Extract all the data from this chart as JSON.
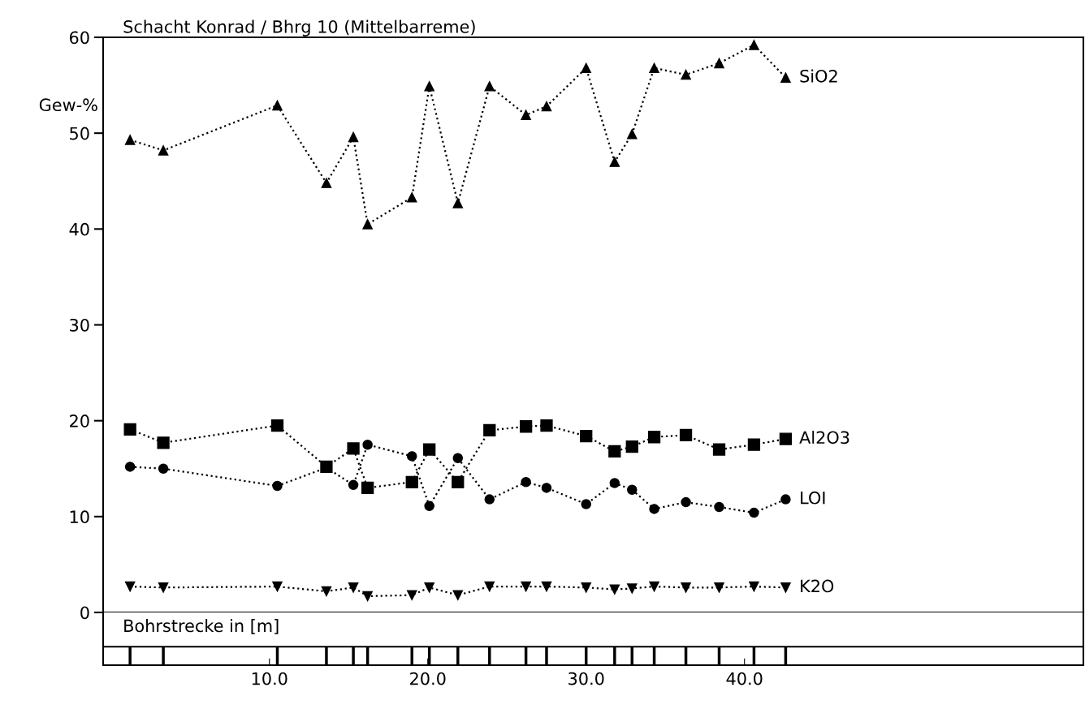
{
  "chart_data": {
    "type": "line",
    "title": "Schacht Konrad / Bhrg 10 (Mittelbarreme)",
    "xlabel": "Bohrstrecke in [m]",
    "ylabel": "Gew-%",
    "x": [
      1.2,
      3.3,
      10.5,
      13.6,
      15.3,
      16.2,
      19.0,
      20.1,
      21.9,
      23.9,
      26.2,
      27.5,
      30.0,
      31.8,
      32.9,
      34.3,
      36.3,
      38.4,
      40.6,
      42.6
    ],
    "series": [
      {
        "name": "SiO2",
        "color": "#000000",
        "marker": "triangle",
        "values": [
          49.3,
          48.2,
          52.9,
          44.8,
          49.6,
          40.5,
          43.3,
          54.9,
          42.7,
          54.9,
          51.9,
          52.8,
          56.8,
          47.0,
          49.9,
          56.8,
          56.1,
          57.3,
          59.2,
          55.8
        ]
      },
      {
        "name": "Al2O3",
        "color": "#000000",
        "marker": "square",
        "values": [
          19.1,
          17.7,
          19.5,
          15.2,
          17.1,
          13.0,
          13.6,
          17.0,
          13.6,
          19.0,
          19.4,
          19.5,
          18.4,
          16.8,
          17.3,
          18.3,
          18.5,
          17.0,
          17.5,
          18.1
        ]
      },
      {
        "name": "LOI",
        "color": "#000000",
        "marker": "circle",
        "values": [
          15.2,
          15.0,
          13.2,
          15.1,
          13.3,
          17.5,
          16.3,
          11.1,
          16.1,
          11.8,
          13.6,
          13.0,
          11.3,
          13.5,
          12.8,
          10.8,
          11.5,
          11.0,
          10.4,
          11.8
        ]
      },
      {
        "name": "K2O",
        "color": "#000000",
        "marker": "triangle_down",
        "values": [
          2.7,
          2.6,
          2.7,
          2.2,
          2.6,
          1.7,
          1.8,
          2.6,
          1.8,
          2.7,
          2.7,
          2.7,
          2.6,
          2.4,
          2.5,
          2.7,
          2.6,
          2.6,
          2.7,
          2.6
        ]
      }
    ],
    "line_style": "dotted",
    "xlim": [
      -0.5,
      61.4
    ],
    "xticks": [
      {
        "value": 10,
        "label": "10.0"
      },
      {
        "value": 20,
        "label": "20.0"
      },
      {
        "value": 30,
        "label": "30.0"
      },
      {
        "value": 40,
        "label": "40.0"
      }
    ],
    "ylim": [
      0,
      60
    ],
    "yticks": [
      0,
      10,
      20,
      30,
      40,
      50,
      60
    ],
    "grid": false,
    "legend": false
  }
}
